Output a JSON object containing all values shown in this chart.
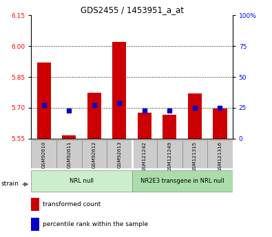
{
  "title": "GDS2455 / 1453951_a_at",
  "samples": [
    "GSM92610",
    "GSM92611",
    "GSM92612",
    "GSM92613",
    "GSM121242",
    "GSM121249",
    "GSM121315",
    "GSM121316"
  ],
  "bar_values": [
    5.92,
    5.565,
    5.775,
    6.02,
    5.675,
    5.665,
    5.77,
    5.695
  ],
  "percentile_values": [
    27,
    23,
    27,
    29,
    23,
    23,
    25,
    25
  ],
  "bar_color": "#cc0000",
  "dot_color": "#0000cc",
  "ylim_left": [
    5.55,
    6.15
  ],
  "ylim_right": [
    0,
    100
  ],
  "yticks_left": [
    5.55,
    5.7,
    5.85,
    6.0,
    6.15
  ],
  "yticks_right": [
    0,
    25,
    50,
    75,
    100
  ],
  "ytick_labels_right": [
    "0",
    "25",
    "50",
    "75",
    "100%"
  ],
  "groups": [
    {
      "label": "NRL null",
      "start": 0,
      "end": 4,
      "color": "#cceecc"
    },
    {
      "label": "NR2E3 transgene in NRL null",
      "start": 4,
      "end": 8,
      "color": "#aaddaa"
    }
  ],
  "group_box_color": "#cccccc",
  "strain_label": "strain",
  "legend_items": [
    {
      "label": "transformed count",
      "color": "#cc0000"
    },
    {
      "label": "percentile rank within the sample",
      "color": "#0000cc"
    }
  ],
  "base_value": 5.55,
  "hgrid_vals": [
    5.7,
    5.85,
    6.0
  ]
}
